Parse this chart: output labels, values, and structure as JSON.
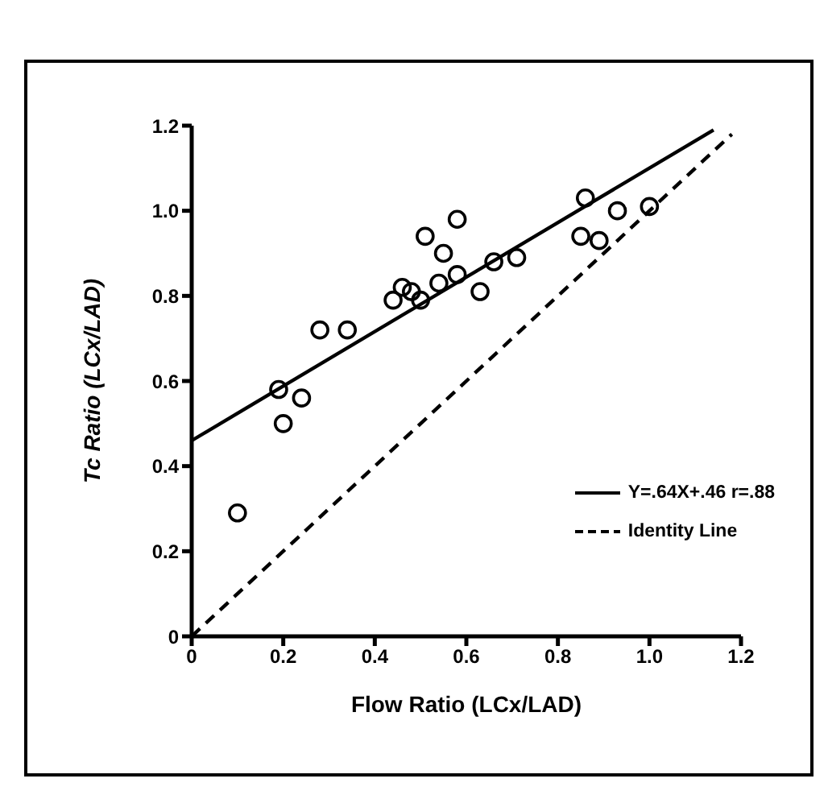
{
  "chart_data": {
    "type": "scatter",
    "xlabel": "Flow Ratio (LCx/LAD)",
    "ylabel": "Tc Ratio (LCx/LAD)",
    "xlim": [
      0,
      1.2
    ],
    "ylim": [
      0,
      1.2
    ],
    "xticks": [
      0,
      0.2,
      0.4,
      0.6,
      0.8,
      {
        "value": 1,
        "label": "1.0"
      },
      1.2
    ],
    "yticks": [
      0,
      0.2,
      0.4,
      0.6,
      0.8,
      {
        "value": 1,
        "label": "1.0"
      },
      1.2
    ],
    "grid": false,
    "legend": "right",
    "series": [
      {
        "color": "#000000",
        "marker": "circle",
        "x": [
          0.1,
          0.19,
          0.2,
          0.24,
          0.28,
          0.34,
          0.44,
          0.46,
          0.48,
          0.5,
          0.51,
          0.55,
          0.54,
          0.58,
          0.58,
          0.63,
          0.66,
          0.71,
          0.85,
          0.86,
          0.89,
          0.93,
          1.0
        ],
        "values": [
          0.29,
          0.58,
          0.5,
          0.56,
          0.72,
          0.72,
          0.79,
          0.82,
          0.81,
          0.79,
          0.94,
          0.9,
          0.83,
          0.98,
          0.85,
          0.81,
          0.88,
          0.89,
          0.94,
          1.03,
          0.93,
          1.0,
          1.01
        ]
      },
      {
        "type": "line",
        "name": "Y=.64X+.46 r=.88",
        "color": "#000000",
        "line_style": "solid",
        "x": [
          0,
          1.14
        ],
        "values": [
          0.46,
          1.19
        ]
      },
      {
        "type": "line",
        "name": "Identity Line",
        "color": "#000000",
        "line_style": "dashed",
        "x": [
          0,
          1.18
        ],
        "values": [
          0,
          1.18
        ]
      }
    ]
  }
}
